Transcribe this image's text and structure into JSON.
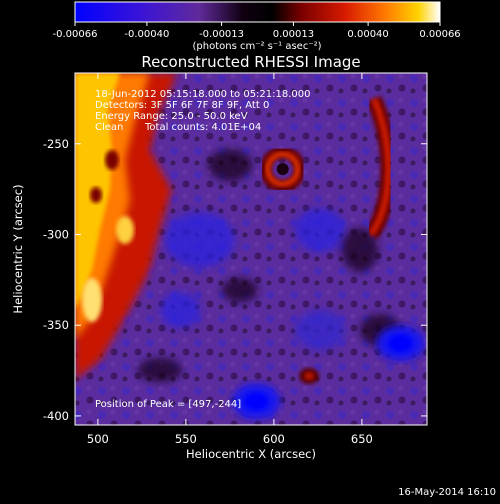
{
  "chart_data": {
    "type": "heatmap",
    "title": "Reconstructed RHESSI Image",
    "colorbar": {
      "ticks": [
        "-0.00066",
        "-0.00040",
        "-0.00013",
        "0.00013",
        "0.00040",
        "0.00066"
      ],
      "range": [
        -0.00066,
        0.00066
      ],
      "unit_label": "(photons cm⁻² s⁻¹ asec⁻²)",
      "colormap": [
        "#0000ff",
        "#2a1cd0",
        "#5a2aa0",
        "#0a0008",
        "#7a0000",
        "#d81a00",
        "#ff7a00",
        "#ffd200",
        "#ffffff"
      ]
    },
    "xlabel": "Heliocentric X (arcsec)",
    "ylabel": "Heliocentric Y (arcsec)",
    "x_ticks": [
      500,
      550,
      600,
      650
    ],
    "y_ticks": [
      -250,
      -300,
      -350,
      -400
    ],
    "xlim": [
      487,
      687
    ],
    "ylim": [
      -405,
      -211
    ],
    "annotations": {
      "time_range": "18-Jun-2012 05:15:18.000 to 05:21:18.000",
      "detectors": "Detectors: 3F 5F 6F 7F 8F 9F, Att 0",
      "energy": "Energy Range: 25.0 - 50.0 keV",
      "method": "Clean",
      "counts": "Total counts: 4.01E+04",
      "peak": "Position of Peak = [497,-244]"
    },
    "features": [
      {
        "type": "bright-ribbon",
        "x_range": [
          487,
          535
        ],
        "level": 0.00066
      },
      {
        "type": "ring-source",
        "x": 605,
        "y": -264,
        "level": 0.0004
      },
      {
        "type": "arc-source",
        "x": 658,
        "y": -275,
        "level": 0.00035
      },
      {
        "type": "compact-source",
        "x": 620,
        "y": -378,
        "level": 0.00025
      },
      {
        "type": "negative-region",
        "x": 590,
        "y": -392,
        "level": -0.00066
      },
      {
        "type": "negative-region",
        "x": 672,
        "y": -360,
        "level": -0.0005
      }
    ]
  },
  "footer": {
    "timestamp": "16-May-2014 16:10"
  }
}
